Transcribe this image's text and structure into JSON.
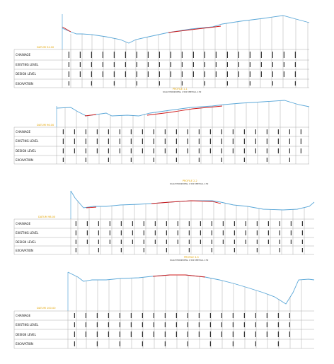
{
  "colors": {
    "ground_line": "#5aa7d8",
    "design_line": "#d01818",
    "datum_text": "#e3a400",
    "grid": "#8a8a8a"
  },
  "sections": [
    {
      "datum": "DATUM 94.00",
      "rows": [
        "CHAINAGE",
        "EXISTING LEVEL",
        "DESIGN LEVEL",
        "EXCAVATION"
      ],
      "caption": "PROFILE 1-1",
      "caption_sub": "SCALE:HORIZONTAL 1:500 VERTICAL 1:50"
    },
    {
      "datum": "DATUM 96.00",
      "rows": [
        "CHAINAGE",
        "EXISTING LEVEL",
        "DESIGN LEVEL",
        "EXCAVATION"
      ],
      "caption": "PROFILE 2-2",
      "caption_sub": "SCALE:HORIZONTAL 1:500 VERTICAL 1:50"
    },
    {
      "datum": "DATUM 98.00",
      "rows": [
        "CHAINAGE",
        "EXISTING LEVEL",
        "DESIGN LEVEL",
        "EXCAVATION"
      ],
      "caption": "PROFILE 3-3",
      "caption_sub": "SCALE:HORIZONTAL 1:500 VERTICAL 1:50"
    },
    {
      "datum": "DATUM 100.00",
      "rows": [
        "CHAINAGE",
        "EXISTING LEVEL",
        "DESIGN LEVEL",
        "EXCAVATION"
      ]
    }
  ]
}
